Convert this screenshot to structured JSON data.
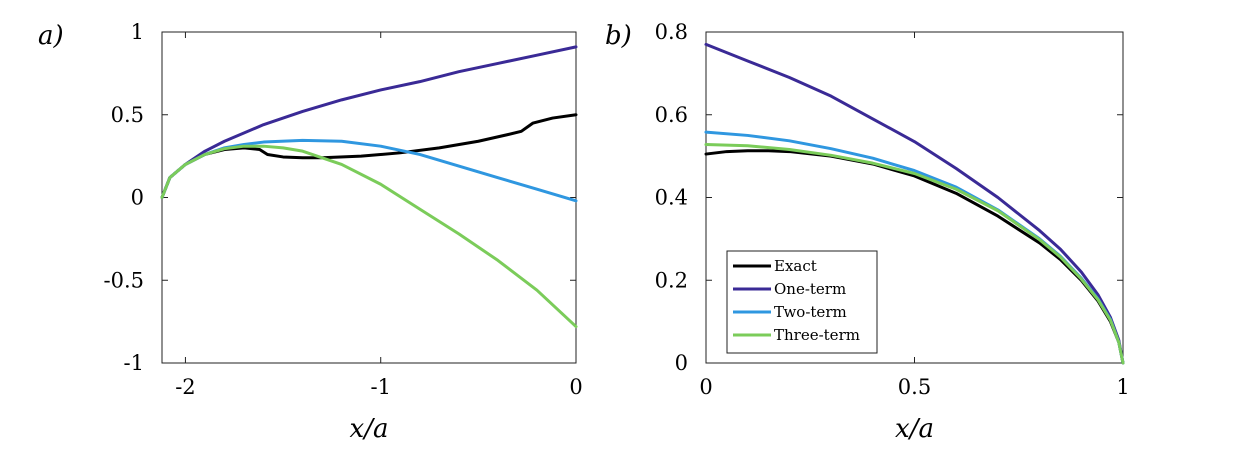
{
  "chart_data": [
    {
      "type": "line",
      "panel_label": "a)",
      "xlabel": "x/a",
      "ylabel": "",
      "xlim": [
        -2.12,
        0
      ],
      "ylim": [
        -1,
        1
      ],
      "xticks": [
        -2,
        -1,
        0
      ],
      "xtick_labels": [
        "-2",
        "-1",
        "0"
      ],
      "yticks": [
        -1,
        -0.5,
        0,
        0.5,
        1
      ],
      "ytick_labels": [
        "-1",
        "-0.5",
        "0",
        "0.5",
        "1"
      ],
      "series": [
        {
          "name": "Exact",
          "color": "#000000",
          "x": [
            -2.12,
            -2.08,
            -2.0,
            -1.9,
            -1.8,
            -1.7,
            -1.62,
            -1.58,
            -1.5,
            -1.4,
            -1.3,
            -1.1,
            -0.9,
            -0.7,
            -0.5,
            -0.35,
            -0.28,
            -0.22,
            -0.12,
            0
          ],
          "y": [
            0.0,
            0.12,
            0.2,
            0.26,
            0.29,
            0.3,
            0.29,
            0.26,
            0.245,
            0.24,
            0.24,
            0.25,
            0.27,
            0.3,
            0.34,
            0.38,
            0.4,
            0.45,
            0.48,
            0.5
          ]
        },
        {
          "name": "One-term",
          "color": "#3a2a96",
          "x": [
            -2.12,
            -2.08,
            -2.0,
            -1.9,
            -1.8,
            -1.6,
            -1.4,
            -1.2,
            -1.0,
            -0.8,
            -0.6,
            -0.4,
            -0.2,
            0
          ],
          "y": [
            0.0,
            0.12,
            0.2,
            0.28,
            0.34,
            0.44,
            0.52,
            0.59,
            0.65,
            0.7,
            0.76,
            0.81,
            0.86,
            0.91
          ]
        },
        {
          "name": "Two-term",
          "color": "#2f97e0",
          "x": [
            -2.12,
            -2.08,
            -2.0,
            -1.9,
            -1.8,
            -1.7,
            -1.6,
            -1.4,
            -1.2,
            -1.0,
            -0.8,
            -0.6,
            -0.4,
            -0.2,
            0
          ],
          "y": [
            0.0,
            0.12,
            0.2,
            0.26,
            0.3,
            0.32,
            0.335,
            0.345,
            0.34,
            0.31,
            0.26,
            0.19,
            0.12,
            0.05,
            -0.02
          ]
        },
        {
          "name": "Three-term",
          "color": "#7bcc5a",
          "x": [
            -2.12,
            -2.08,
            -2.0,
            -1.9,
            -1.8,
            -1.7,
            -1.6,
            -1.5,
            -1.4,
            -1.2,
            -1.0,
            -0.8,
            -0.6,
            -0.4,
            -0.2,
            0
          ],
          "y": [
            0.0,
            0.12,
            0.2,
            0.26,
            0.295,
            0.31,
            0.31,
            0.3,
            0.28,
            0.2,
            0.08,
            -0.07,
            -0.22,
            -0.38,
            -0.56,
            -0.78
          ]
        }
      ]
    },
    {
      "type": "line",
      "panel_label": "b)",
      "xlabel": "x/a",
      "ylabel": "",
      "xlim": [
        0,
        1
      ],
      "ylim": [
        0,
        0.8
      ],
      "xticks": [
        0,
        0.5,
        1
      ],
      "xtick_labels": [
        "0",
        "0.5",
        "1"
      ],
      "yticks": [
        0,
        0.2,
        0.4,
        0.6,
        0.8
      ],
      "ytick_labels": [
        "0",
        "0.2",
        "0.4",
        "0.6",
        "0.8"
      ],
      "legend": {
        "position": "bottom-left",
        "entries": [
          "Exact",
          "One-term",
          "Two-term",
          "Three-term"
        ]
      },
      "series": [
        {
          "name": "Exact",
          "color": "#000000",
          "x": [
            0,
            0.05,
            0.1,
            0.15,
            0.2,
            0.3,
            0.4,
            0.5,
            0.6,
            0.7,
            0.8,
            0.85,
            0.9,
            0.94,
            0.97,
            0.99,
            1.0
          ],
          "y": [
            0.505,
            0.511,
            0.513,
            0.513,
            0.511,
            0.5,
            0.481,
            0.452,
            0.41,
            0.355,
            0.29,
            0.25,
            0.2,
            0.15,
            0.1,
            0.05,
            0.0
          ]
        },
        {
          "name": "One-term",
          "color": "#3a2a96",
          "x": [
            0,
            0.1,
            0.2,
            0.3,
            0.4,
            0.5,
            0.6,
            0.7,
            0.8,
            0.85,
            0.9,
            0.94,
            0.97,
            0.99,
            1.0
          ],
          "y": [
            0.77,
            0.73,
            0.69,
            0.645,
            0.59,
            0.535,
            0.47,
            0.4,
            0.32,
            0.275,
            0.22,
            0.165,
            0.11,
            0.055,
            0.0
          ]
        },
        {
          "name": "Two-term",
          "color": "#2f97e0",
          "x": [
            0,
            0.1,
            0.2,
            0.3,
            0.4,
            0.5,
            0.6,
            0.7,
            0.8,
            0.85,
            0.9,
            0.94,
            0.97,
            0.99,
            1.0
          ],
          "y": [
            0.558,
            0.55,
            0.537,
            0.518,
            0.495,
            0.465,
            0.425,
            0.37,
            0.3,
            0.258,
            0.205,
            0.155,
            0.105,
            0.05,
            0.0
          ]
        },
        {
          "name": "Three-term",
          "color": "#7bcc5a",
          "x": [
            0,
            0.1,
            0.2,
            0.3,
            0.4,
            0.5,
            0.6,
            0.7,
            0.8,
            0.85,
            0.9,
            0.94,
            0.97,
            0.99,
            1.0
          ],
          "y": [
            0.528,
            0.525,
            0.516,
            0.502,
            0.483,
            0.458,
            0.42,
            0.368,
            0.298,
            0.256,
            0.203,
            0.153,
            0.103,
            0.05,
            0.0
          ]
        }
      ]
    }
  ]
}
